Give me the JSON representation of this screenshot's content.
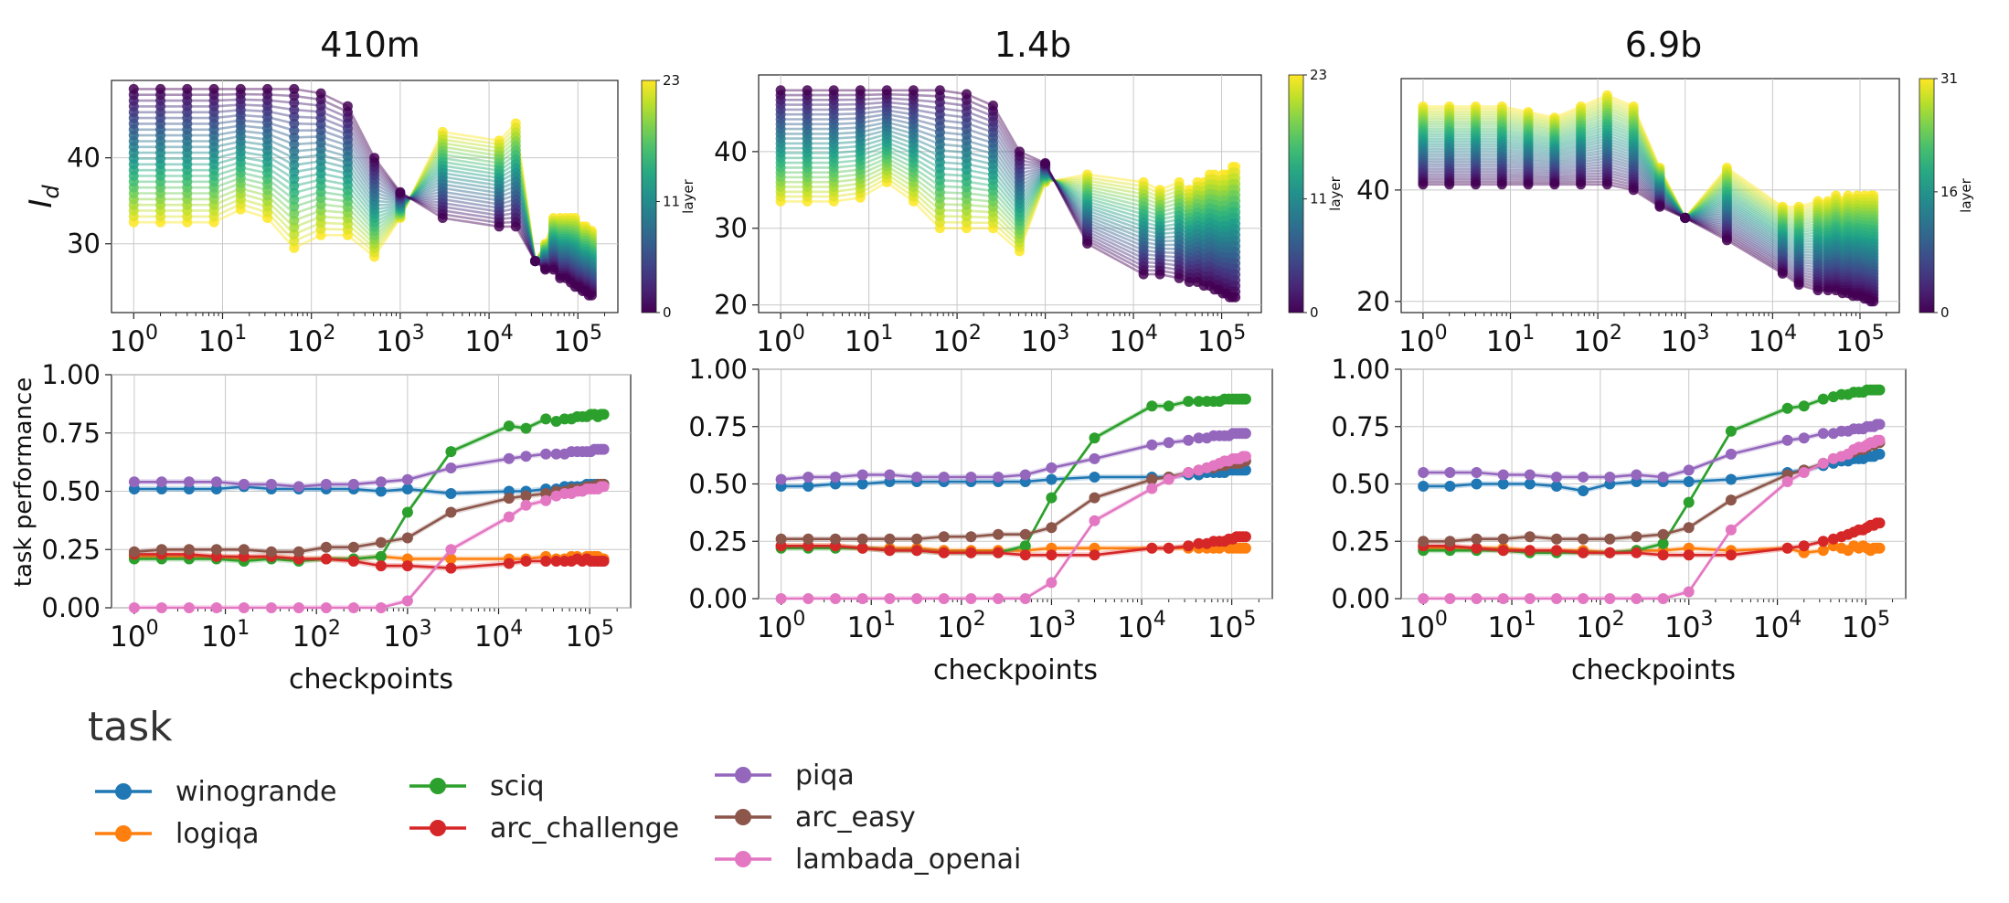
{
  "chart_data": [
    {
      "type": "line",
      "title": "410m",
      "ylabel": "I_d",
      "xscale": "log",
      "xticks": [
        "10^0",
        "10^1",
        "10^2",
        "10^3",
        "10^4",
        "10^5"
      ],
      "yticks": [
        30,
        40
      ],
      "ylim": [
        22,
        49
      ],
      "colorbar": {
        "label": "layer",
        "ticks": [
          0,
          11,
          23
        ]
      },
      "n_layers": 24,
      "lines": "one line per layer, colored by layer (viridis)",
      "x": [
        1,
        2,
        4,
        8,
        16,
        32,
        64,
        128,
        256,
        512,
        1000,
        3000,
        13000,
        20000,
        33000,
        43000,
        53000,
        63000,
        73000,
        83000,
        93000,
        103000,
        113000,
        123000,
        133000,
        143000
      ],
      "layer_top": [
        48,
        48,
        48,
        48,
        48,
        48,
        48,
        47.5,
        46,
        40,
        36,
        33,
        32,
        32,
        28,
        27,
        27,
        26,
        26,
        25.5,
        25,
        25,
        24.5,
        24.5,
        24,
        24
      ],
      "layer_bottom": [
        32.5,
        32.5,
        32.5,
        32.5,
        34,
        33,
        29.5,
        31,
        31,
        28.5,
        33,
        43,
        42,
        44,
        28,
        30,
        33,
        33,
        33,
        33,
        33,
        32,
        32,
        32,
        31.5,
        31.5
      ]
    },
    {
      "type": "line",
      "title": "1.4b",
      "ylabel": "",
      "xscale": "log",
      "xticks": [
        "10^0",
        "10^1",
        "10^2",
        "10^3",
        "10^4",
        "10^5"
      ],
      "yticks": [
        20,
        30,
        40
      ],
      "ylim": [
        19,
        50
      ],
      "colorbar": {
        "label": "layer",
        "ticks": [
          0,
          11,
          23
        ]
      },
      "n_layers": 24,
      "lines": "one line per layer, colored by layer (viridis)",
      "x": [
        1,
        2,
        4,
        8,
        16,
        32,
        64,
        128,
        256,
        512,
        1000,
        3000,
        13000,
        20000,
        33000,
        43000,
        53000,
        63000,
        73000,
        83000,
        93000,
        103000,
        113000,
        123000,
        133000,
        143000
      ],
      "layer_top": [
        48,
        48,
        48,
        48,
        48,
        48,
        48,
        47.5,
        46,
        40,
        38.5,
        28,
        24,
        24,
        23.5,
        23,
        23,
        22.5,
        22.5,
        22,
        22,
        21.5,
        21.5,
        21,
        21,
        21
      ],
      "layer_bottom": [
        33.5,
        33.5,
        33.5,
        34,
        36,
        33.5,
        30,
        30,
        30,
        27,
        36,
        37,
        36,
        35,
        36,
        35,
        36,
        36,
        37,
        37,
        36,
        37,
        37,
        37,
        38,
        38
      ]
    },
    {
      "type": "line",
      "title": "6.9b",
      "ylabel": "",
      "xscale": "log",
      "xticks": [
        "10^0",
        "10^1",
        "10^2",
        "10^3",
        "10^4",
        "10^5"
      ],
      "yticks": [
        20,
        40
      ],
      "ylim": [
        18,
        60
      ],
      "colorbar": {
        "label": "layer",
        "ticks": [
          0,
          16,
          31
        ]
      },
      "n_layers": 32,
      "lines": "one line per layer, colored by layer (viridis)",
      "x": [
        1,
        2,
        4,
        8,
        16,
        32,
        64,
        128,
        256,
        512,
        1000,
        3000,
        13000,
        20000,
        33000,
        43000,
        53000,
        63000,
        73000,
        83000,
        93000,
        103000,
        113000,
        123000,
        133000,
        143000
      ],
      "layer_top": [
        41,
        41,
        41,
        41,
        41,
        41,
        41,
        41,
        40,
        37,
        35,
        31,
        25,
        23,
        22,
        22,
        22,
        21.5,
        21.5,
        21,
        21,
        21,
        20.5,
        20.5,
        20,
        20
      ],
      "layer_bottom": [
        55,
        55,
        55,
        55,
        54,
        53,
        55,
        57,
        55,
        44,
        35,
        44,
        37,
        37,
        38,
        38,
        39,
        38,
        39,
        38,
        39,
        38,
        39,
        38,
        39,
        39
      ]
    },
    {
      "type": "line",
      "ylabel": "task performance",
      "xlabel": "checkpoints",
      "xscale": "log",
      "xticks": [
        "10^0",
        "10^1",
        "10^2",
        "10^3",
        "10^4",
        "10^5"
      ],
      "yticks": [
        "0.00",
        "0.25",
        "0.50",
        "0.75",
        "1.00"
      ],
      "ylim": [
        0,
        1
      ],
      "x": [
        1,
        2,
        4,
        8,
        16,
        32,
        64,
        128,
        256,
        512,
        1000,
        3000,
        13000,
        20000,
        33000,
        43000,
        53000,
        63000,
        73000,
        83000,
        93000,
        103000,
        113000,
        123000,
        133000,
        143000
      ],
      "series": [
        {
          "name": "winogrande",
          "values": [
            0.51,
            0.51,
            0.51,
            0.51,
            0.52,
            0.51,
            0.51,
            0.51,
            0.51,
            0.5,
            0.51,
            0.49,
            0.5,
            0.5,
            0.51,
            0.51,
            0.52,
            0.52,
            0.52,
            0.52,
            0.53,
            0.53,
            0.53,
            0.53,
            0.53,
            0.53
          ]
        },
        {
          "name": "logiqa",
          "values": [
            0.22,
            0.22,
            0.22,
            0.22,
            0.21,
            0.22,
            0.21,
            0.21,
            0.21,
            0.22,
            0.21,
            0.21,
            0.21,
            0.21,
            0.22,
            0.21,
            0.21,
            0.22,
            0.22,
            0.21,
            0.22,
            0.22,
            0.22,
            0.22,
            0.21,
            0.21
          ]
        },
        {
          "name": "sciq",
          "values": [
            0.21,
            0.21,
            0.21,
            0.21,
            0.2,
            0.21,
            0.2,
            0.21,
            0.21,
            0.22,
            0.41,
            0.67,
            0.78,
            0.77,
            0.81,
            0.8,
            0.81,
            0.81,
            0.82,
            0.82,
            0.82,
            0.83,
            0.83,
            0.82,
            0.83,
            0.83
          ]
        },
        {
          "name": "arc_challenge",
          "values": [
            0.23,
            0.23,
            0.23,
            0.22,
            0.22,
            0.22,
            0.21,
            0.21,
            0.2,
            0.18,
            0.18,
            0.17,
            0.19,
            0.2,
            0.2,
            0.2,
            0.2,
            0.2,
            0.21,
            0.2,
            0.21,
            0.2,
            0.2,
            0.2,
            0.2,
            0.2
          ]
        },
        {
          "name": "piqa",
          "values": [
            0.54,
            0.54,
            0.54,
            0.54,
            0.53,
            0.53,
            0.52,
            0.53,
            0.53,
            0.54,
            0.55,
            0.6,
            0.64,
            0.65,
            0.66,
            0.66,
            0.66,
            0.67,
            0.67,
            0.67,
            0.67,
            0.67,
            0.68,
            0.68,
            0.68,
            0.68
          ]
        },
        {
          "name": "arc_easy",
          "values": [
            0.24,
            0.25,
            0.25,
            0.25,
            0.25,
            0.24,
            0.24,
            0.26,
            0.26,
            0.28,
            0.3,
            0.41,
            0.47,
            0.48,
            0.49,
            0.5,
            0.5,
            0.51,
            0.51,
            0.51,
            0.52,
            0.52,
            0.52,
            0.53,
            0.53,
            0.53
          ]
        },
        {
          "name": "lambada_openai",
          "values": [
            0.0,
            0.0,
            0.0,
            0.0,
            0.0,
            0.0,
            0.0,
            0.0,
            0.0,
            0.0,
            0.03,
            0.25,
            0.39,
            0.44,
            0.46,
            0.48,
            0.49,
            0.49,
            0.5,
            0.5,
            0.51,
            0.51,
            0.51,
            0.51,
            0.52,
            0.52
          ]
        }
      ]
    },
    {
      "type": "line",
      "xlabel": "checkpoints",
      "xscale": "log",
      "xticks": [
        "10^0",
        "10^1",
        "10^2",
        "10^3",
        "10^4",
        "10^5"
      ],
      "yticks": [
        "0.00",
        "0.25",
        "0.50",
        "0.75",
        "1.00"
      ],
      "ylim": [
        0,
        1
      ],
      "x": [
        1,
        2,
        4,
        8,
        16,
        32,
        64,
        128,
        256,
        512,
        1000,
        3000,
        13000,
        20000,
        33000,
        43000,
        53000,
        63000,
        73000,
        83000,
        93000,
        103000,
        113000,
        123000,
        133000,
        143000
      ],
      "series": [
        {
          "name": "winogrande",
          "values": [
            0.49,
            0.49,
            0.5,
            0.5,
            0.51,
            0.51,
            0.51,
            0.51,
            0.51,
            0.51,
            0.52,
            0.53,
            0.53,
            0.53,
            0.54,
            0.54,
            0.55,
            0.55,
            0.55,
            0.55,
            0.56,
            0.56,
            0.56,
            0.56,
            0.56,
            0.56
          ]
        },
        {
          "name": "logiqa",
          "values": [
            0.23,
            0.23,
            0.23,
            0.22,
            0.22,
            0.22,
            0.21,
            0.21,
            0.21,
            0.21,
            0.22,
            0.22,
            0.22,
            0.22,
            0.22,
            0.22,
            0.22,
            0.22,
            0.22,
            0.23,
            0.22,
            0.22,
            0.22,
            0.22,
            0.22,
            0.22
          ]
        },
        {
          "name": "sciq",
          "values": [
            0.22,
            0.22,
            0.22,
            0.22,
            0.21,
            0.21,
            0.2,
            0.2,
            0.2,
            0.23,
            0.44,
            0.7,
            0.84,
            0.84,
            0.86,
            0.86,
            0.86,
            0.86,
            0.86,
            0.87,
            0.87,
            0.87,
            0.87,
            0.87,
            0.87,
            0.87
          ]
        },
        {
          "name": "arc_challenge",
          "values": [
            0.23,
            0.23,
            0.23,
            0.22,
            0.21,
            0.21,
            0.2,
            0.2,
            0.2,
            0.19,
            0.19,
            0.19,
            0.22,
            0.22,
            0.23,
            0.24,
            0.24,
            0.25,
            0.25,
            0.25,
            0.26,
            0.26,
            0.27,
            0.27,
            0.27,
            0.27
          ]
        },
        {
          "name": "piqa",
          "values": [
            0.52,
            0.53,
            0.53,
            0.54,
            0.54,
            0.53,
            0.53,
            0.53,
            0.53,
            0.54,
            0.57,
            0.61,
            0.67,
            0.68,
            0.69,
            0.7,
            0.7,
            0.71,
            0.71,
            0.71,
            0.71,
            0.72,
            0.72,
            0.72,
            0.72,
            0.72
          ]
        },
        {
          "name": "arc_easy",
          "values": [
            0.26,
            0.26,
            0.26,
            0.26,
            0.26,
            0.26,
            0.27,
            0.27,
            0.28,
            0.28,
            0.31,
            0.44,
            0.52,
            0.53,
            0.55,
            0.56,
            0.57,
            0.57,
            0.58,
            0.58,
            0.59,
            0.59,
            0.59,
            0.59,
            0.6,
            0.6
          ]
        },
        {
          "name": "lambada_openai",
          "values": [
            0.0,
            0.0,
            0.0,
            0.0,
            0.0,
            0.0,
            0.0,
            0.0,
            0.0,
            0.0,
            0.07,
            0.34,
            0.48,
            0.52,
            0.55,
            0.56,
            0.57,
            0.58,
            0.59,
            0.6,
            0.6,
            0.61,
            0.61,
            0.61,
            0.62,
            0.62
          ]
        }
      ]
    },
    {
      "type": "line",
      "xlabel": "checkpoints",
      "xscale": "log",
      "xticks": [
        "10^0",
        "10^1",
        "10^2",
        "10^3",
        "10^4",
        "10^5"
      ],
      "yticks": [
        "0.00",
        "0.25",
        "0.50",
        "0.75",
        "1.00"
      ],
      "ylim": [
        0,
        1
      ],
      "x": [
        1,
        2,
        4,
        8,
        16,
        32,
        64,
        128,
        256,
        512,
        1000,
        3000,
        13000,
        20000,
        33000,
        43000,
        53000,
        63000,
        73000,
        83000,
        93000,
        103000,
        113000,
        123000,
        133000,
        143000
      ],
      "series": [
        {
          "name": "winogrande",
          "values": [
            0.49,
            0.49,
            0.5,
            0.5,
            0.5,
            0.49,
            0.47,
            0.5,
            0.51,
            0.51,
            0.51,
            0.52,
            0.55,
            0.56,
            0.58,
            0.59,
            0.6,
            0.6,
            0.61,
            0.61,
            0.61,
            0.62,
            0.62,
            0.62,
            0.63,
            0.63
          ]
        },
        {
          "name": "logiqa",
          "values": [
            0.22,
            0.22,
            0.22,
            0.22,
            0.21,
            0.21,
            0.21,
            0.2,
            0.21,
            0.21,
            0.22,
            0.21,
            0.22,
            0.2,
            0.21,
            0.23,
            0.22,
            0.21,
            0.23,
            0.22,
            0.23,
            0.22,
            0.21,
            0.22,
            0.22,
            0.22
          ]
        },
        {
          "name": "sciq",
          "values": [
            0.21,
            0.21,
            0.21,
            0.21,
            0.2,
            0.2,
            0.2,
            0.2,
            0.21,
            0.24,
            0.42,
            0.73,
            0.83,
            0.84,
            0.87,
            0.88,
            0.89,
            0.89,
            0.9,
            0.9,
            0.9,
            0.91,
            0.91,
            0.91,
            0.91,
            0.91
          ]
        },
        {
          "name": "arc_challenge",
          "values": [
            0.23,
            0.23,
            0.22,
            0.21,
            0.21,
            0.21,
            0.2,
            0.2,
            0.2,
            0.19,
            0.19,
            0.19,
            0.22,
            0.23,
            0.25,
            0.26,
            0.27,
            0.28,
            0.29,
            0.3,
            0.3,
            0.31,
            0.32,
            0.32,
            0.33,
            0.33
          ]
        },
        {
          "name": "piqa",
          "values": [
            0.55,
            0.55,
            0.55,
            0.54,
            0.54,
            0.53,
            0.53,
            0.53,
            0.54,
            0.53,
            0.56,
            0.63,
            0.69,
            0.7,
            0.72,
            0.72,
            0.73,
            0.73,
            0.74,
            0.74,
            0.74,
            0.75,
            0.75,
            0.75,
            0.76,
            0.76
          ]
        },
        {
          "name": "arc_easy",
          "values": [
            0.25,
            0.25,
            0.26,
            0.26,
            0.27,
            0.26,
            0.26,
            0.26,
            0.27,
            0.28,
            0.31,
            0.43,
            0.54,
            0.56,
            0.59,
            0.61,
            0.62,
            0.63,
            0.64,
            0.65,
            0.65,
            0.66,
            0.67,
            0.67,
            0.68,
            0.68
          ]
        },
        {
          "name": "lambada_openai",
          "values": [
            0.0,
            0.0,
            0.0,
            0.0,
            0.0,
            0.0,
            0.0,
            0.0,
            0.0,
            0.0,
            0.03,
            0.3,
            0.51,
            0.55,
            0.59,
            0.61,
            0.62,
            0.63,
            0.65,
            0.66,
            0.66,
            0.67,
            0.68,
            0.68,
            0.69,
            0.69
          ]
        }
      ]
    }
  ],
  "legend": {
    "title": "task",
    "items": [
      {
        "name": "winogrande",
        "color": "#1f77b4"
      },
      {
        "name": "logiqa",
        "color": "#ff7f0e"
      },
      {
        "name": "sciq",
        "color": "#2ca02c"
      },
      {
        "name": "arc_challenge",
        "color": "#d62728"
      },
      {
        "name": "piqa",
        "color": "#9467bd"
      },
      {
        "name": "arc_easy",
        "color": "#8c564b"
      },
      {
        "name": "lambada_openai",
        "color": "#e377c2"
      }
    ]
  }
}
